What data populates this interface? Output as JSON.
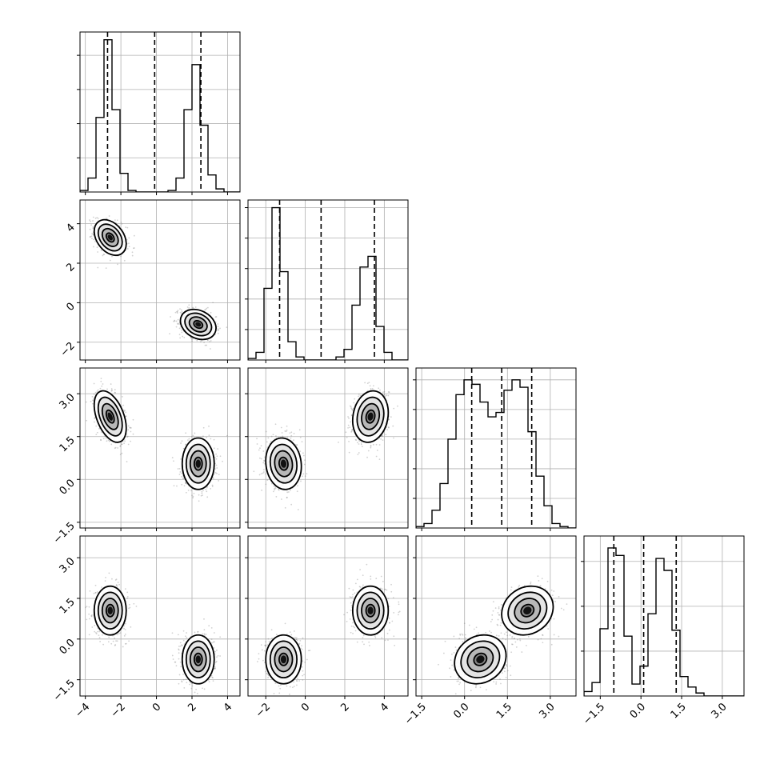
{
  "chart_data": {
    "type": "corner",
    "title": "",
    "variables": [
      {
        "name": "",
        "ticks": [
          -4,
          -2,
          0,
          2,
          4
        ],
        "tick_labels": [
          "−4",
          "−2",
          "0",
          "2",
          "4"
        ],
        "range": [
          -4.3,
          4.7
        ],
        "quantiles": [
          -2.75,
          -0.1,
          2.5
        ],
        "modes": [
          {
            "mean": -2.6,
            "sd": 0.45,
            "weight": 0.5
          },
          {
            "mean": 2.35,
            "sd": 0.45,
            "weight": 0.5
          }
        ],
        "hist_edges": [
          -4.3,
          -3.85,
          -3.4,
          -2.95,
          -2.5,
          -2.05,
          -1.6,
          -1.15,
          -0.7,
          -0.25,
          0.2,
          0.65,
          1.1,
          1.55,
          2.0,
          2.45,
          2.9,
          3.35,
          3.8,
          4.25,
          4.7
        ],
        "hist_counts": [
          0.01,
          0.09,
          0.48,
          0.98,
          0.53,
          0.12,
          0.01,
          0.0,
          0.0,
          0.0,
          0.0,
          0.01,
          0.09,
          0.53,
          0.82,
          0.43,
          0.11,
          0.02,
          0.0,
          0.0
        ],
        "hist_ylim": [
          0,
          1.03
        ],
        "hist_yticks": [
          0.22,
          0.44,
          0.66,
          0.88
        ]
      },
      {
        "name": "",
        "ticks": [
          -2,
          0,
          2,
          4
        ],
        "tick_labels": [
          "−2",
          "0",
          "2",
          "4"
        ],
        "range": [
          -2.9,
          5.2
        ],
        "quantiles": [
          -1.3,
          0.8,
          3.5
        ],
        "modes": [
          {
            "mean": -1.1,
            "sd": 0.45,
            "weight": 0.5
          },
          {
            "mean": 3.3,
            "sd": 0.45,
            "weight": 0.5
          }
        ],
        "hist_edges": [
          -2.9,
          -2.495,
          -2.09,
          -1.685,
          -1.28,
          -0.875,
          -0.47,
          -0.065,
          0.34,
          0.745,
          1.15,
          1.555,
          1.96,
          2.365,
          2.77,
          3.175,
          3.58,
          3.985,
          4.39,
          4.795,
          5.2
        ],
        "hist_counts": [
          0.01,
          0.05,
          0.47,
          1.0,
          0.58,
          0.12,
          0.02,
          0.0,
          0.0,
          0.0,
          0.0,
          0.02,
          0.07,
          0.36,
          0.61,
          0.68,
          0.22,
          0.05,
          0.0,
          0.0
        ],
        "hist_ylim": [
          0,
          1.05
        ],
        "hist_yticks": [
          0.2,
          0.4,
          0.6,
          0.8,
          1.0
        ]
      },
      {
        "name": "",
        "ticks": [
          -1.5,
          0.0,
          1.5,
          3.0
        ],
        "tick_labels": [
          "−1.5",
          "0.0",
          "1.5",
          "3.0"
        ],
        "range": [
          -1.7,
          3.9
        ],
        "quantiles": [
          0.25,
          1.3,
          2.35
        ],
        "modes": [
          {
            "mean": 0.55,
            "sd": 0.45,
            "weight": 0.5
          },
          {
            "mean": 2.2,
            "sd": 0.45,
            "weight": 0.5
          }
        ],
        "hist_edges": [
          -1.7,
          -1.42,
          -1.14,
          -0.86,
          -0.58,
          -0.3,
          -0.02,
          0.26,
          0.54,
          0.82,
          1.1,
          1.38,
          1.66,
          1.94,
          2.22,
          2.5,
          2.78,
          3.06,
          3.34,
          3.62,
          3.9
        ],
        "hist_counts": [
          0.01,
          0.03,
          0.12,
          0.3,
          0.6,
          0.9,
          1.0,
          0.97,
          0.85,
          0.75,
          0.78,
          0.93,
          1.0,
          0.95,
          0.65,
          0.35,
          0.15,
          0.03,
          0.01,
          0.0
        ],
        "hist_ylim": [
          0,
          1.08
        ],
        "hist_yticks": [
          0.2,
          0.4,
          0.6,
          0.8,
          1.0
        ]
      },
      {
        "name": "",
        "ticks": [
          -1.5,
          0.0,
          1.5,
          3.0
        ],
        "tick_labels": [
          "−1.5",
          "0.0",
          "1.5",
          "3.0"
        ],
        "range": [
          -2.1,
          3.8
        ],
        "quantiles": [
          -1.0,
          0.1,
          1.3
        ],
        "modes": [
          {
            "mean": -0.75,
            "sd": 0.45,
            "weight": 0.5
          },
          {
            "mean": 1.05,
            "sd": 0.45,
            "weight": 0.5
          }
        ],
        "hist_edges": [
          -2.1,
          -1.805,
          -1.51,
          -1.215,
          -0.92,
          -0.625,
          -0.33,
          -0.035,
          0.26,
          0.555,
          0.85,
          1.145,
          1.44,
          1.735,
          2.03,
          2.325,
          2.62,
          2.915,
          3.21,
          3.505,
          3.8
        ],
        "hist_counts": [
          0.03,
          0.09,
          0.45,
          0.99,
          0.94,
          0.4,
          0.08,
          0.2,
          0.55,
          0.92,
          0.84,
          0.44,
          0.13,
          0.06,
          0.02,
          0.0,
          0.0,
          0.0,
          0.0,
          0.0
        ],
        "hist_ylim": [
          0,
          1.07
        ],
        "hist_yticks": [
          0.3,
          0.6,
          0.9
        ]
      }
    ],
    "pairs": [
      {
        "row": 1,
        "col": 0,
        "blobs": [
          {
            "cx": -2.6,
            "cy": 3.3,
            "sx": 0.45,
            "sy": 0.45,
            "rho": -0.35
          },
          {
            "cx": 2.35,
            "cy": -1.1,
            "sx": 0.5,
            "sy": 0.38,
            "rho": -0.25
          }
        ]
      },
      {
        "row": 2,
        "col": 0,
        "blobs": [
          {
            "cx": -2.6,
            "cy": 2.2,
            "sx": 0.45,
            "sy": 0.45,
            "rho": -0.45
          },
          {
            "cx": 2.35,
            "cy": 0.55,
            "sx": 0.45,
            "sy": 0.45,
            "rho": 0.0
          }
        ]
      },
      {
        "row": 2,
        "col": 1,
        "blobs": [
          {
            "cx": -1.1,
            "cy": 0.55,
            "sx": 0.45,
            "sy": 0.45,
            "rho": -0.1
          },
          {
            "cx": 3.3,
            "cy": 2.2,
            "sx": 0.45,
            "sy": 0.45,
            "rho": 0.15
          }
        ]
      },
      {
        "row": 3,
        "col": 0,
        "blobs": [
          {
            "cx": -2.6,
            "cy": 1.05,
            "sx": 0.45,
            "sy": 0.45,
            "rho": 0.0
          },
          {
            "cx": 2.35,
            "cy": -0.75,
            "sx": 0.45,
            "sy": 0.45,
            "rho": 0.0
          }
        ]
      },
      {
        "row": 3,
        "col": 1,
        "blobs": [
          {
            "cx": -1.1,
            "cy": -0.75,
            "sx": 0.45,
            "sy": 0.45,
            "rho": 0.0
          },
          {
            "cx": 3.3,
            "cy": 1.05,
            "sx": 0.45,
            "sy": 0.45,
            "rho": 0.0
          }
        ]
      },
      {
        "row": 3,
        "col": 2,
        "blobs": [
          {
            "cx": 0.55,
            "cy": -0.75,
            "sx": 0.45,
            "sy": 0.45,
            "rho": 0.15
          },
          {
            "cx": 2.2,
            "cy": 1.05,
            "sx": 0.45,
            "sy": 0.45,
            "rho": 0.15
          }
        ]
      }
    ],
    "contour_levels_sigma": [
      0.5,
      1.0,
      1.5,
      2.0
    ],
    "grid": true,
    "colors": {
      "line": "#000000",
      "grid": "#b0b0b0",
      "scatter": "#7a7a7a",
      "density_dark": "#111111",
      "density_light": "#dcdcdc"
    }
  }
}
